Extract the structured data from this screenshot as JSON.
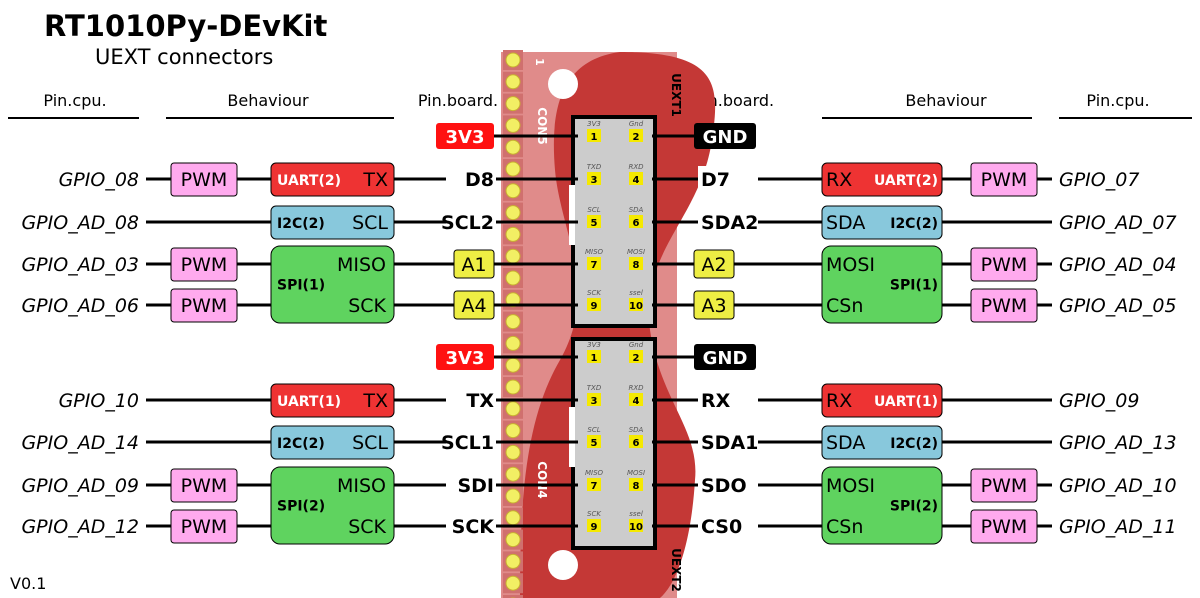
{
  "title": "RT1010Py-DEvKit",
  "subtitle": "UEXT connectors",
  "version": "V0.1",
  "headers": {
    "left_cpu": "Pin.cpu.",
    "left_behaviour": "Behaviour",
    "left_board": "Pin.board.",
    "right_board": "Pin.board.",
    "right_behaviour": "Behaviour",
    "right_cpu": "Pin.cpu."
  },
  "board": {
    "con_top": "CON5",
    "con_bottom": "CON4",
    "uext1": "UEXT1",
    "uext2": "UEXT2",
    "pin1": "1"
  },
  "colors": {
    "uart": "#ee3333",
    "i2c": "#88c8dc",
    "spi": "#5fd35f",
    "pwm": "#ffaaee",
    "analog": "#eeee44",
    "power_3v3": "#ff1111",
    "gnd": "#000000",
    "pcb": "#c43836",
    "pcb_light": "#e08b8a",
    "header_pin": "#f2ef64",
    "connector": "#cccccc"
  },
  "connector_pins": [
    "3V3",
    "Gnd",
    "TXD",
    "RXD",
    "SCL",
    "SDA",
    "MISO",
    "MOSI",
    "SCK",
    "ssel"
  ],
  "connectors": [
    {
      "left_power": "3V3",
      "right_power": "GND",
      "rows": [
        {
          "l_gpio": "GPIO_08",
          "l_pwm": "PWM",
          "l_box": {
            "type": "uart",
            "bus": "UART(2)",
            "sig": "TX"
          },
          "l_pin": "D8",
          "l_pin_style": "plain",
          "r_pin": "D7",
          "r_pin_style": "plain",
          "r_box": {
            "type": "uart",
            "bus": "UART(2)",
            "sig": "RX"
          },
          "r_pwm": "PWM",
          "r_gpio": "GPIO_07"
        },
        {
          "l_gpio": "GPIO_AD_08",
          "l_pwm": "",
          "l_box": {
            "type": "i2c",
            "bus": "I2C(2)",
            "sig": "SCL"
          },
          "l_pin": "SCL2",
          "l_pin_style": "plain",
          "r_pin": "SDA2",
          "r_pin_style": "plain",
          "r_box": {
            "type": "i2c",
            "bus": "I2C(2)",
            "sig": "SDA"
          },
          "r_pwm": "",
          "r_gpio": "GPIO_AD_07"
        },
        {
          "l_gpio": "GPIO_AD_03",
          "l_pwm": "PWM",
          "l_pin": "A1",
          "l_pin_style": "analog",
          "r_pin": "A2",
          "r_pin_style": "analog",
          "r_pwm": "PWM",
          "r_gpio": "GPIO_AD_04"
        },
        {
          "l_gpio": "GPIO_AD_06",
          "l_pwm": "PWM",
          "l_pin": "A4",
          "l_pin_style": "analog",
          "r_pin": "A3",
          "r_pin_style": "analog",
          "r_pwm": "PWM",
          "r_gpio": "GPIO_AD_05"
        }
      ],
      "spi_left": {
        "bus": "SPI(1)",
        "top": "MISO",
        "bottom": "SCK"
      },
      "spi_right": {
        "bus": "SPI(1)",
        "top": "MOSI",
        "bottom": "CSn"
      }
    },
    {
      "left_power": "3V3",
      "right_power": "GND",
      "rows": [
        {
          "l_gpio": "GPIO_10",
          "l_pwm": "",
          "l_box": {
            "type": "uart",
            "bus": "UART(1)",
            "sig": "TX"
          },
          "l_pin": "TX",
          "l_pin_style": "plain",
          "r_pin": "RX",
          "r_pin_style": "plain",
          "r_box": {
            "type": "uart",
            "bus": "UART(1)",
            "sig": "RX"
          },
          "r_pwm": "",
          "r_gpio": "GPIO_09"
        },
        {
          "l_gpio": "GPIO_AD_14",
          "l_pwm": "",
          "l_box": {
            "type": "i2c",
            "bus": "I2C(2)",
            "sig": "SCL"
          },
          "l_pin": "SCL1",
          "l_pin_style": "plain",
          "r_pin": "SDA1",
          "r_pin_style": "plain",
          "r_box": {
            "type": "i2c",
            "bus": "I2C(2)",
            "sig": "SDA"
          },
          "r_pwm": "",
          "r_gpio": "GPIO_AD_13"
        },
        {
          "l_gpio": "GPIO_AD_09",
          "l_pwm": "PWM",
          "l_pin": "SDI",
          "l_pin_style": "plain",
          "r_pin": "SDO",
          "r_pin_style": "plain",
          "r_pwm": "PWM",
          "r_gpio": "GPIO_AD_10"
        },
        {
          "l_gpio": "GPIO_AD_12",
          "l_pwm": "PWM",
          "l_pin": "SCK",
          "l_pin_style": "plain",
          "r_pin": "CS0",
          "r_pin_style": "plain",
          "r_pwm": "PWM",
          "r_gpio": "GPIO_AD_11"
        }
      ],
      "spi_left": {
        "bus": "SPI(2)",
        "top": "MISO",
        "bottom": "SCK"
      },
      "spi_right": {
        "bus": "SPI(2)",
        "top": "MOSI",
        "bottom": "CSn"
      }
    }
  ]
}
